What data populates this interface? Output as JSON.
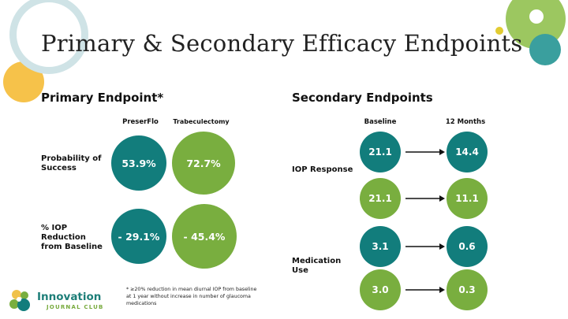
{
  "title": "Primary & Secondary Efficacy Endpoints",
  "primary": {
    "heading": "Primary Endpoint*",
    "columns": [
      "PreserFlo",
      "Trabeculectomy"
    ],
    "rows": [
      {
        "label": "Probability of Success",
        "values": [
          "53.9%",
          "72.7%"
        ]
      },
      {
        "label": "% IOP Reduction from Baseline",
        "values": [
          "- 29.1%",
          "- 45.4%"
        ]
      }
    ],
    "footnote": "* ≥20% reduction in mean diurnal IOP from baseline at 1 year without increase in number of glaucoma medications"
  },
  "secondary": {
    "heading": "Secondary Endpoints",
    "columns": [
      "Baseline",
      "12 Months"
    ],
    "groups": [
      {
        "label": "IOP Response",
        "pairs": [
          [
            "21.1",
            "14.4"
          ],
          [
            "21.1",
            "11.1"
          ]
        ]
      },
      {
        "label": "Medication Use",
        "pairs": [
          [
            "3.1",
            "0.6"
          ],
          [
            "3.0",
            "0.3"
          ]
        ]
      }
    ]
  },
  "logo": {
    "name": "Innovation",
    "subtitle": "JOURNAL CLUB"
  },
  "colors": {
    "teal": "#127d7c",
    "green": "#79ae3f",
    "yellow": "#f6c24a",
    "ring": "#cfe3e6"
  }
}
